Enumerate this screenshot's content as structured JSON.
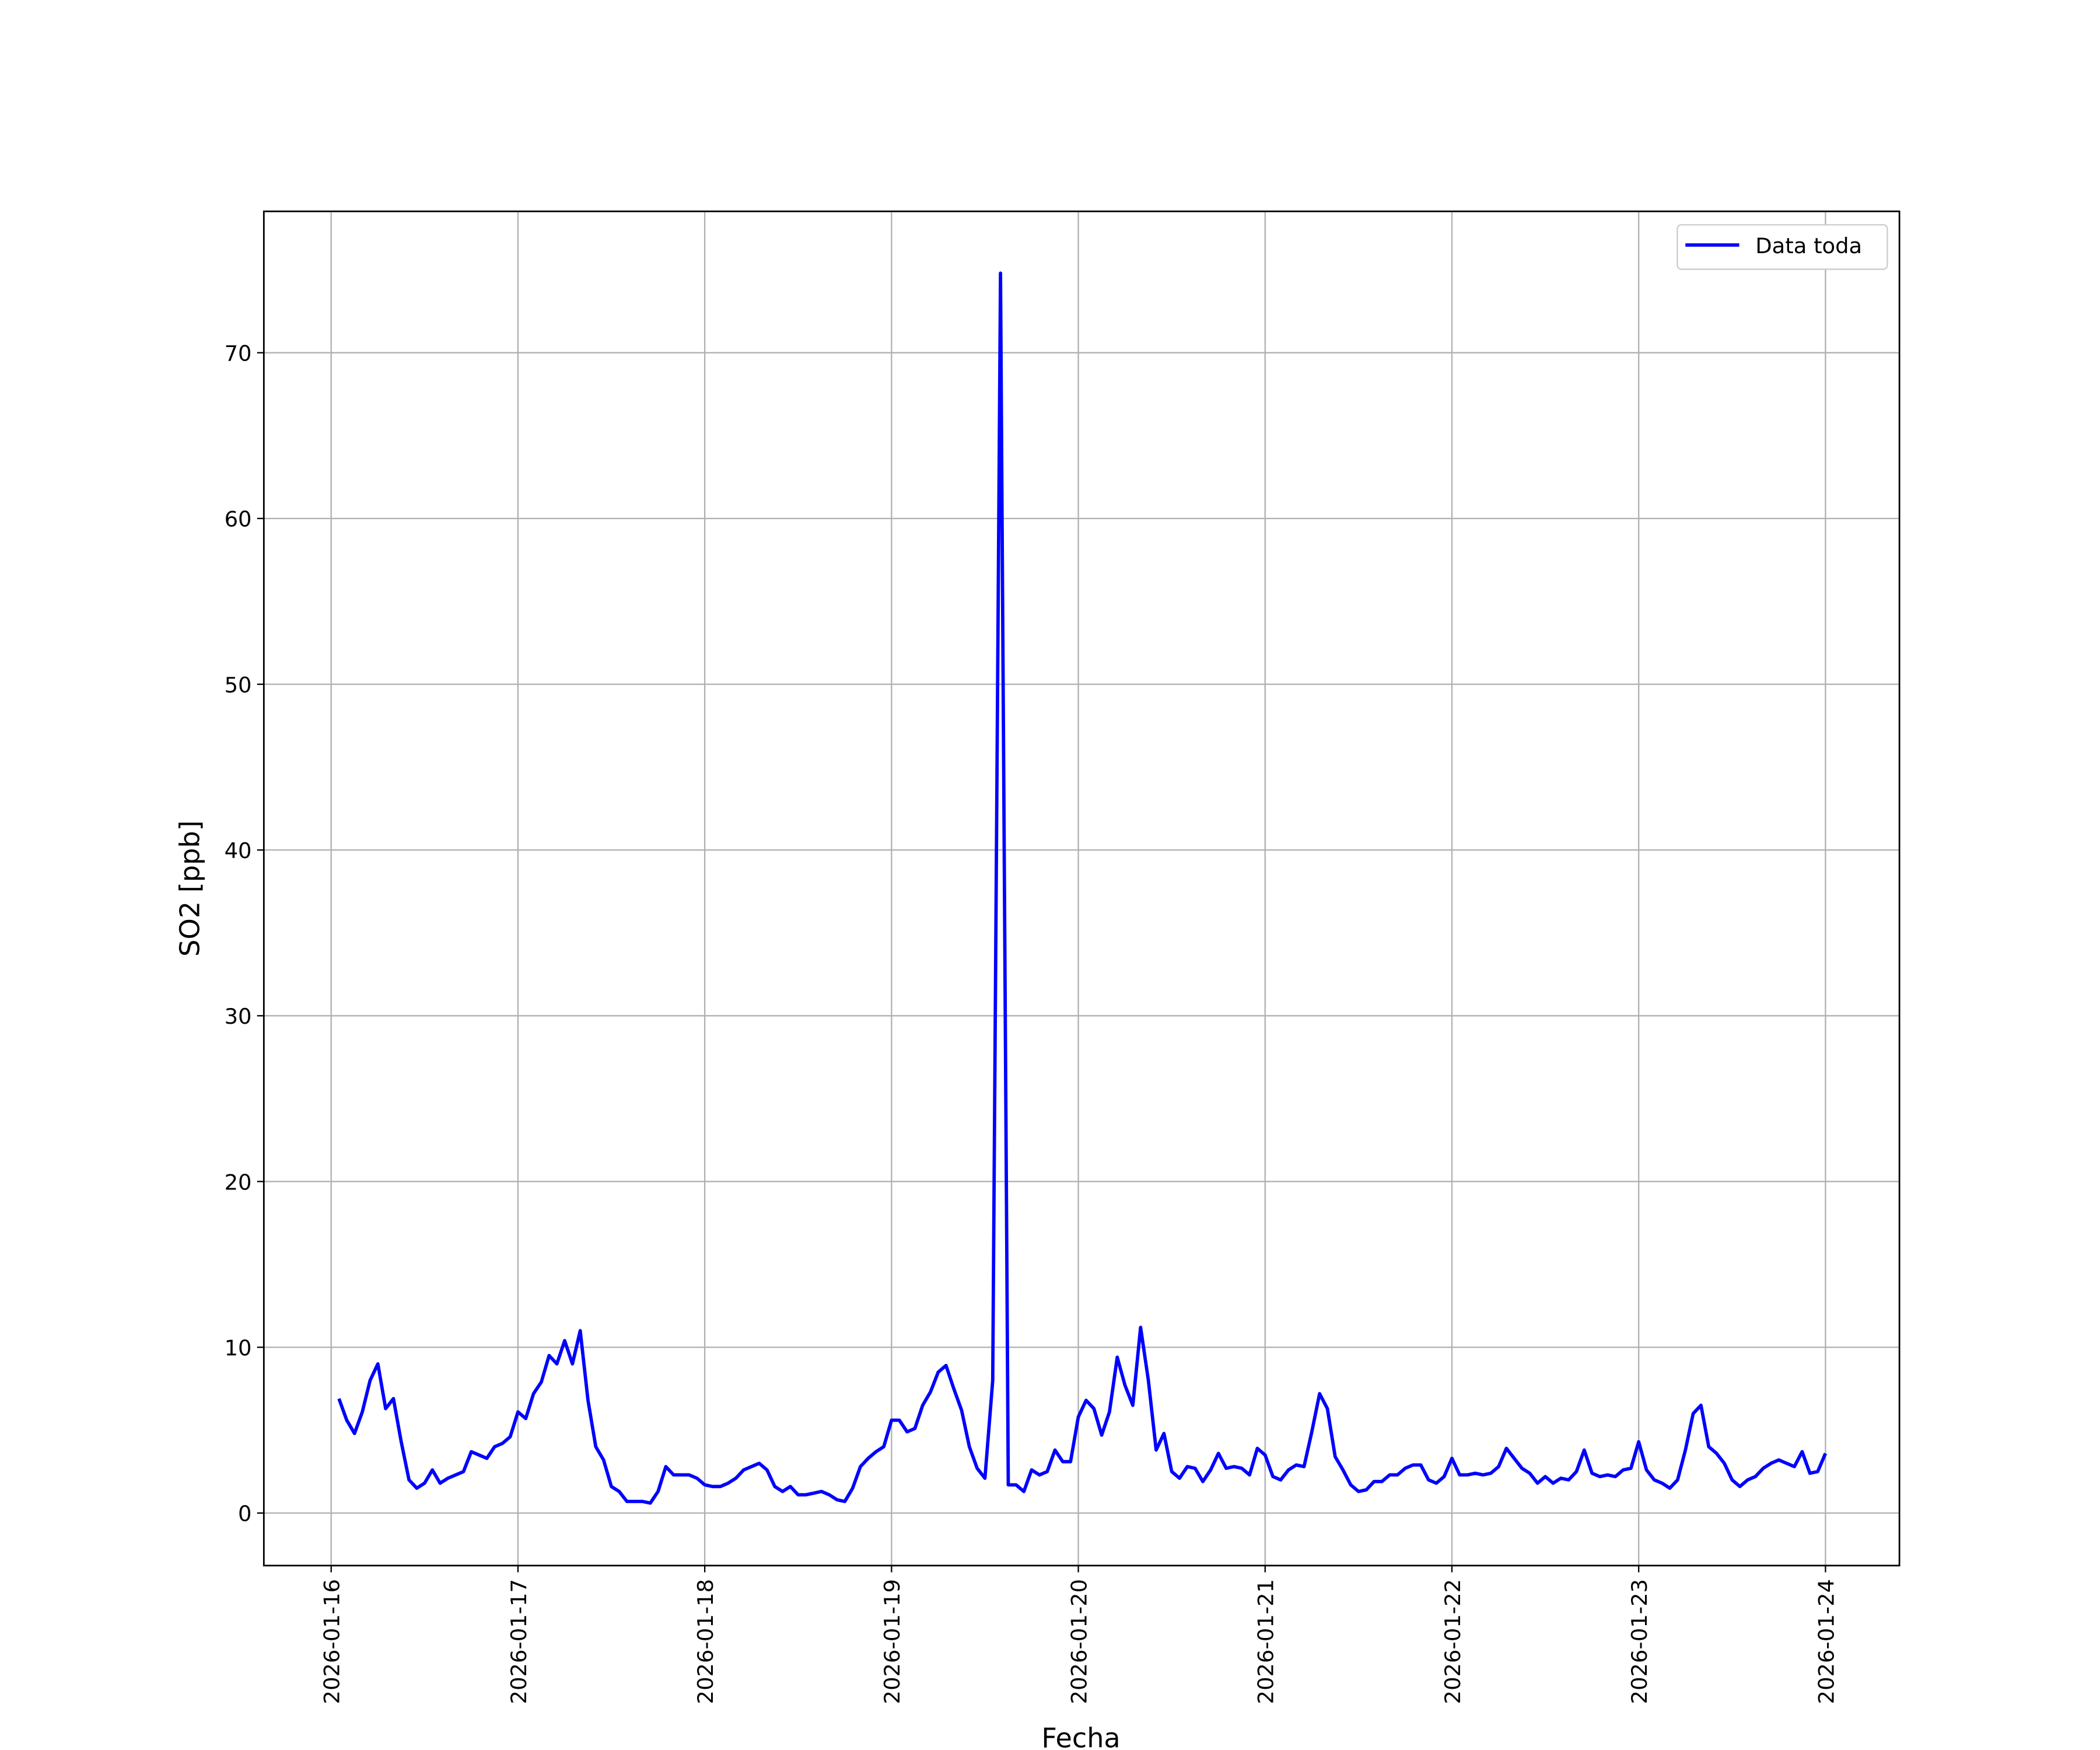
{
  "chart_data": {
    "type": "line",
    "y_label": "SO2 [ppb]",
    "x_label": "Fecha",
    "x": [
      "2026-01-16 01:00",
      "2026-01-16 02:00",
      "2026-01-16 03:00",
      "2026-01-16 04:00",
      "2026-01-16 05:00",
      "2026-01-16 06:00",
      "2026-01-16 07:00",
      "2026-01-16 08:00",
      "2026-01-16 09:00",
      "2026-01-16 10:00",
      "2026-01-16 11:00",
      "2026-01-16 12:00",
      "2026-01-16 13:00",
      "2026-01-16 14:00",
      "2026-01-16 15:00",
      "2026-01-16 16:00",
      "2026-01-16 17:00",
      "2026-01-16 18:00",
      "2026-01-16 19:00",
      "2026-01-16 20:00",
      "2026-01-16 21:00",
      "2026-01-16 22:00",
      "2026-01-16 23:00",
      "2026-01-17 00:00",
      "2026-01-17 01:00",
      "2026-01-17 02:00",
      "2026-01-17 03:00",
      "2026-01-17 04:00",
      "2026-01-17 05:00",
      "2026-01-17 06:00",
      "2026-01-17 07:00",
      "2026-01-17 08:00",
      "2026-01-17 09:00",
      "2026-01-17 10:00",
      "2026-01-17 11:00",
      "2026-01-17 12:00",
      "2026-01-17 13:00",
      "2026-01-17 14:00",
      "2026-01-17 15:00",
      "2026-01-17 16:00",
      "2026-01-17 17:00",
      "2026-01-17 18:00",
      "2026-01-17 19:00",
      "2026-01-17 20:00",
      "2026-01-17 21:00",
      "2026-01-17 22:00",
      "2026-01-17 23:00",
      "2026-01-18 00:00",
      "2026-01-18 01:00",
      "2026-01-18 02:00",
      "2026-01-18 03:00",
      "2026-01-18 04:00",
      "2026-01-18 05:00",
      "2026-01-18 06:00",
      "2026-01-18 07:00",
      "2026-01-18 08:00",
      "2026-01-18 09:00",
      "2026-01-18 10:00",
      "2026-01-18 11:00",
      "2026-01-18 12:00",
      "2026-01-18 13:00",
      "2026-01-18 14:00",
      "2026-01-18 15:00",
      "2026-01-18 16:00",
      "2026-01-18 17:00",
      "2026-01-18 18:00",
      "2026-01-18 19:00",
      "2026-01-18 20:00",
      "2026-01-18 21:00",
      "2026-01-18 22:00",
      "2026-01-18 23:00",
      "2026-01-19 00:00",
      "2026-01-19 01:00",
      "2026-01-19 02:00",
      "2026-01-19 03:00",
      "2026-01-19 04:00",
      "2026-01-19 05:00",
      "2026-01-19 06:00",
      "2026-01-19 07:00",
      "2026-01-19 08:00",
      "2026-01-19 09:00",
      "2026-01-19 10:00",
      "2026-01-19 11:00",
      "2026-01-19 12:00",
      "2026-01-19 13:00",
      "2026-01-19 14:00",
      "2026-01-19 15:00",
      "2026-01-19 16:00",
      "2026-01-19 17:00",
      "2026-01-19 18:00",
      "2026-01-19 19:00",
      "2026-01-19 20:00",
      "2026-01-19 21:00",
      "2026-01-19 22:00",
      "2026-01-19 23:00",
      "2026-01-20 00:00",
      "2026-01-20 01:00",
      "2026-01-20 02:00",
      "2026-01-20 03:00",
      "2026-01-20 04:00",
      "2026-01-20 05:00",
      "2026-01-20 06:00",
      "2026-01-20 07:00",
      "2026-01-20 08:00",
      "2026-01-20 09:00",
      "2026-01-20 10:00",
      "2026-01-20 11:00",
      "2026-01-20 12:00",
      "2026-01-20 13:00",
      "2026-01-20 14:00",
      "2026-01-20 15:00",
      "2026-01-20 16:00",
      "2026-01-20 17:00",
      "2026-01-20 18:00",
      "2026-01-20 19:00",
      "2026-01-20 20:00",
      "2026-01-20 21:00",
      "2026-01-20 22:00",
      "2026-01-20 23:00",
      "2026-01-21 00:00",
      "2026-01-21 01:00",
      "2026-01-21 02:00",
      "2026-01-21 03:00",
      "2026-01-21 04:00",
      "2026-01-21 05:00",
      "2026-01-21 06:00",
      "2026-01-21 07:00",
      "2026-01-21 08:00",
      "2026-01-21 09:00",
      "2026-01-21 10:00",
      "2026-01-21 11:00",
      "2026-01-21 12:00",
      "2026-01-21 13:00",
      "2026-01-21 14:00",
      "2026-01-21 15:00",
      "2026-01-21 16:00",
      "2026-01-21 17:00",
      "2026-01-21 18:00",
      "2026-01-21 19:00",
      "2026-01-21 20:00",
      "2026-01-21 21:00",
      "2026-01-21 22:00",
      "2026-01-21 23:00",
      "2026-01-22 00:00",
      "2026-01-22 01:00",
      "2026-01-22 02:00",
      "2026-01-22 03:00",
      "2026-01-22 04:00",
      "2026-01-22 05:00",
      "2026-01-22 06:00",
      "2026-01-22 07:00",
      "2026-01-22 08:00",
      "2026-01-22 09:00",
      "2026-01-22 10:00",
      "2026-01-22 11:00",
      "2026-01-22 12:00",
      "2026-01-22 13:00",
      "2026-01-22 14:00",
      "2026-01-22 15:00",
      "2026-01-22 16:00",
      "2026-01-22 17:00",
      "2026-01-22 18:00",
      "2026-01-22 19:00",
      "2026-01-22 20:00",
      "2026-01-22 21:00",
      "2026-01-22 22:00",
      "2026-01-22 23:00",
      "2026-01-23 00:00",
      "2026-01-23 01:00",
      "2026-01-23 02:00",
      "2026-01-23 03:00",
      "2026-01-23 04:00",
      "2026-01-23 05:00",
      "2026-01-23 06:00",
      "2026-01-23 07:00",
      "2026-01-23 08:00",
      "2026-01-23 09:00",
      "2026-01-23 10:00",
      "2026-01-23 11:00",
      "2026-01-23 12:00",
      "2026-01-23 13:00",
      "2026-01-23 14:00",
      "2026-01-23 15:00",
      "2026-01-23 16:00",
      "2026-01-23 17:00",
      "2026-01-23 18:00",
      "2026-01-23 19:00",
      "2026-01-23 20:00",
      "2026-01-23 21:00",
      "2026-01-23 22:00",
      "2026-01-23 23:00",
      "2026-01-24 00:00"
    ],
    "series": [
      {
        "name": "Data toda",
        "color": "#0000ff",
        "values": [
          6.9,
          5.6,
          4.8,
          6.1,
          8.0,
          9.0,
          6.3,
          6.9,
          4.3,
          2.0,
          1.5,
          1.8,
          2.6,
          1.8,
          2.1,
          2.3,
          2.5,
          3.7,
          3.5,
          3.3,
          4.0,
          4.2,
          4.6,
          6.1,
          5.7,
          7.2,
          7.9,
          9.5,
          9.0,
          10.4,
          9.0,
          11.0,
          6.8,
          4.0,
          3.2,
          1.6,
          1.3,
          0.7,
          0.7,
          0.7,
          0.6,
          1.3,
          2.8,
          2.3,
          2.3,
          2.3,
          2.1,
          1.7,
          1.6,
          1.6,
          1.8,
          2.1,
          2.6,
          2.8,
          3.0,
          2.6,
          1.6,
          1.3,
          1.6,
          1.1,
          1.1,
          1.2,
          1.3,
          1.1,
          0.8,
          0.7,
          1.5,
          2.8,
          3.3,
          3.7,
          4.0,
          5.6,
          5.6,
          4.9,
          5.1,
          6.5,
          7.3,
          8.5,
          8.9,
          7.5,
          6.2,
          4.0,
          2.7,
          2.1,
          8.0,
          74.8,
          1.7,
          1.7,
          1.3,
          2.6,
          2.3,
          2.5,
          3.8,
          3.1,
          3.1,
          5.8,
          6.8,
          6.3,
          4.7,
          6.1,
          9.4,
          7.7,
          6.5,
          11.2,
          8.0,
          3.8,
          4.8,
          2.5,
          2.1,
          2.8,
          2.7,
          1.9,
          2.6,
          3.6,
          2.7,
          2.8,
          2.7,
          2.3,
          3.9,
          3.5,
          2.2,
          2.0,
          2.6,
          2.9,
          2.8,
          4.9,
          7.2,
          6.3,
          3.4,
          2.6,
          1.7,
          1.3,
          1.4,
          1.9,
          1.9,
          2.3,
          2.3,
          2.7,
          2.9,
          2.9,
          2.0,
          1.8,
          2.2,
          3.3,
          2.3,
          2.3,
          2.4,
          2.3,
          2.4,
          2.8,
          3.9,
          3.3,
          2.7,
          2.4,
          1.8,
          2.2,
          1.8,
          2.1,
          2.0,
          2.5,
          3.8,
          2.4,
          2.2,
          2.3,
          2.2,
          2.6,
          2.7,
          4.3,
          2.6,
          2.0,
          1.8,
          1.5,
          2.0,
          3.8,
          6.0,
          6.5,
          4.0,
          3.6,
          3.0,
          2.0,
          1.6,
          2.0,
          2.2,
          2.7,
          3.0,
          3.2,
          3.0,
          2.8,
          3.7,
          2.4,
          2.5,
          3.6
        ]
      }
    ],
    "xlim": [
      "2026-01-15 15:21",
      "2026-01-24 09:30"
    ],
    "xticks": [
      "2026-01-16",
      "2026-01-17",
      "2026-01-18",
      "2026-01-19",
      "2026-01-20",
      "2026-01-21",
      "2026-01-22",
      "2026-01-23",
      "2026-01-24"
    ],
    "ylim": [
      -3.17,
      78.53
    ],
    "yticks": [
      0,
      10,
      20,
      30,
      40,
      50,
      60,
      70
    ],
    "grid": true,
    "legend": "upper right"
  }
}
